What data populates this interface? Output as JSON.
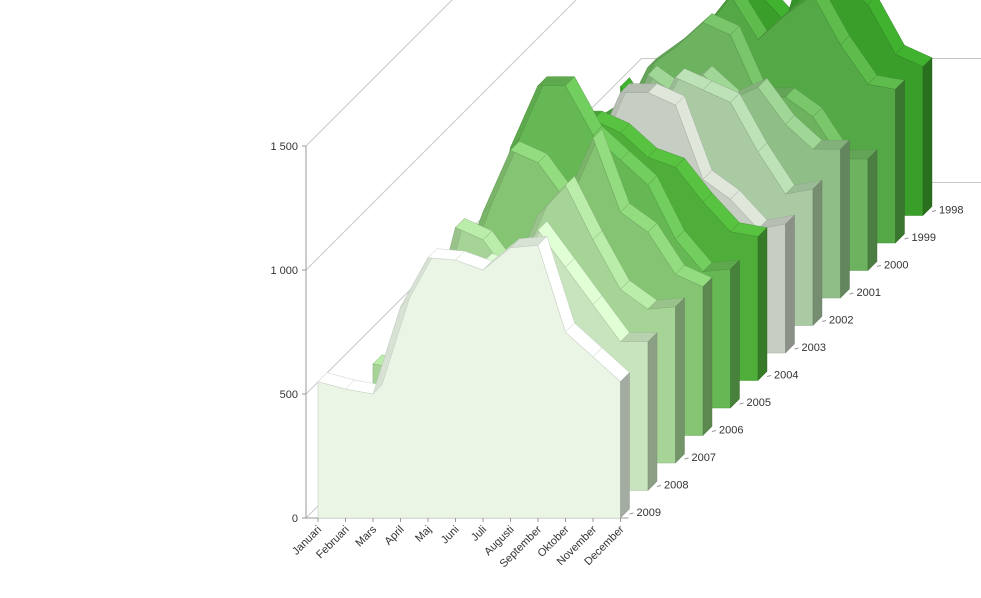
{
  "chart_data": {
    "type": "area",
    "title": "",
    "xlabel": "",
    "ylabel": "",
    "ylim": [
      0,
      1500
    ],
    "y_ticks": [
      "0",
      "500",
      "1 000",
      "1 500"
    ],
    "grid": true,
    "legend": "none",
    "categories": [
      "Januari",
      "Februari",
      "Mars",
      "April",
      "Maj",
      "Juni",
      "Juli",
      "Augusti",
      "September",
      "Oktober",
      "November",
      "December"
    ],
    "series": [
      {
        "name": "1998",
        "color": "#3a9e2b",
        "values": [
          520,
          350,
          520,
          640,
          820,
          900,
          780,
          1150,
          950,
          850,
          650,
          600
        ]
      },
      {
        "name": "1999",
        "color": "#54a845",
        "values": [
          480,
          550,
          620,
          760,
          860,
          1000,
          820,
          920,
          1000,
          800,
          640,
          620
        ]
      },
      {
        "name": "2000",
        "color": "#6cb25f",
        "values": [
          440,
          420,
          600,
          820,
          900,
          1000,
          950,
          700,
          700,
          620,
          450,
          450
        ]
      },
      {
        "name": "2001",
        "color": "#8fbf86",
        "values": [
          480,
          520,
          580,
          620,
          900,
          820,
          900,
          800,
          850,
          700,
          600,
          600
        ]
      },
      {
        "name": "2002",
        "color": "#a9caa3",
        "values": [
          450,
          480,
          500,
          520,
          680,
          800,
          1000,
          950,
          900,
          700,
          530,
          550
        ]
      },
      {
        "name": "2003",
        "color": "#c6cec3",
        "values": [
          450,
          420,
          520,
          700,
          800,
          1050,
          1050,
          1000,
          700,
          620,
          500,
          520
        ]
      },
      {
        "name": "2004",
        "color": "#4fae39",
        "values": [
          450,
          420,
          640,
          900,
          1050,
          1050,
          1000,
          900,
          860,
          720,
          600,
          580
        ]
      },
      {
        "name": "2005",
        "color": "#66b854",
        "values": [
          400,
          380,
          500,
          1050,
          1300,
          1300,
          1100,
          1000,
          900,
          680,
          550,
          560
        ]
      },
      {
        "name": "2006",
        "color": "#84c472",
        "values": [
          500,
          450,
          600,
          900,
          1150,
          1100,
          950,
          1200,
          900,
          820,
          650,
          600
        ]
      },
      {
        "name": "2007",
        "color": "#a6d497",
        "values": [
          400,
          380,
          520,
          950,
          900,
          750,
          1000,
          1120,
          900,
          700,
          620,
          630
        ]
      },
      {
        "name": "2008",
        "color": "#c8e4be",
        "values": [
          380,
          350,
          400,
          650,
          850,
          920,
          880,
          1050,
          900,
          750,
          600,
          600
        ]
      },
      {
        "name": "2009",
        "color": "#eaf5e6",
        "values": [
          550,
          520,
          500,
          850,
          1050,
          1040,
          1000,
          1090,
          1100,
          750,
          650,
          550
        ]
      }
    ]
  }
}
